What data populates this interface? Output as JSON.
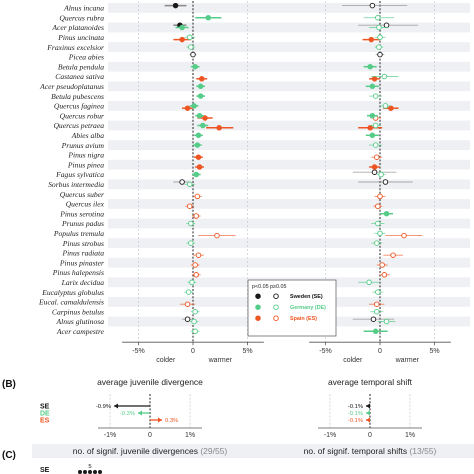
{
  "colors": {
    "SE": "#1a1a1a",
    "DE": "#55cc88",
    "ES": "#ee5522",
    "gray": "#999999",
    "stripe": "#eef0f3"
  },
  "panel_labels": {
    "b": "(B)",
    "c": "(C)"
  },
  "legend": {
    "sig_label": "p<0.05",
    "nonsig_label": "p≥0.05",
    "entries": [
      {
        "key": "SE",
        "label": "Sweden (SE)"
      },
      {
        "key": "DE",
        "label": "Germany (DE)"
      },
      {
        "key": "ES",
        "label": "Spain (ES)"
      }
    ]
  },
  "chart_data": [
    {
      "type": "scatter",
      "panel": "A",
      "subpanels": [
        "juvenile divergence",
        "temporal shift"
      ],
      "categories": [
        "Alnus incana",
        "Quercus rubra",
        "Acer platanoides",
        "Pinus uncinata",
        "Fraxinus excelsior",
        "Picea abies",
        "Betula pendula",
        "Castanea sativa",
        "Acer pseudoplatanus",
        "Betula pubescens",
        "Quercus faginea",
        "Quercus robur",
        "Quercus petraea",
        "Abies alba",
        "Prunus avium",
        "Pinus nigra",
        "Pinus pinea",
        "Fagus sylvatica",
        "Sorbus intermedia",
        "Quercus suber",
        "Quercus ilex",
        "Pinus serotina",
        "Prunus padus",
        "Populus tremula",
        "Pinus strobus",
        "Pinus radiata",
        "Pinus pinaster",
        "Pinus halepensis",
        "Larix decidua",
        "Eucalyptus globulus",
        "Eucal. camaldulensis",
        "Carpinus betulus",
        "Alnus glutinosa",
        "Acer campestre"
      ],
      "xticks": [
        "-5%",
        "0",
        "5%"
      ],
      "xtick_values": [
        -5,
        0,
        5
      ],
      "xlim": [
        -6.5,
        6.5
      ],
      "xlabel_left": "colder",
      "xlabel_right": "warmer",
      "series_left": [
        {
          "sp": "Alnus incana",
          "c": "SE",
          "v": -1.6,
          "lo": -2.6,
          "hi": -0.6,
          "s": true
        },
        {
          "sp": "Quercus rubra",
          "c": "DE",
          "v": 1.4,
          "lo": 0.2,
          "hi": 2.6,
          "s": true
        },
        {
          "sp": "Acer platanoides",
          "c": "SE",
          "v": -1.2,
          "lo": -1.8,
          "hi": -0.6,
          "s": true
        },
        {
          "sp": "Acer platanoides",
          "c": "DE",
          "v": -1.0,
          "lo": -1.6,
          "hi": -0.4,
          "s": true
        },
        {
          "sp": "Pinus uncinata",
          "c": "ES",
          "v": -1.0,
          "lo": -1.8,
          "hi": -0.2,
          "s": true
        },
        {
          "sp": "Pinus uncinata",
          "c": "DE",
          "v": -0.3,
          "lo": -0.8,
          "hi": 0.2,
          "s": false
        },
        {
          "sp": "Fraxinus excelsior",
          "c": "DE",
          "v": -0.2,
          "lo": -0.6,
          "hi": 0.2,
          "s": false
        },
        {
          "sp": "Picea abies",
          "c": "SE",
          "v": 0.0,
          "lo": -0.3,
          "hi": 0.3,
          "s": false
        },
        {
          "sp": "Betula pendula",
          "c": "DE",
          "v": 0.2,
          "lo": -0.2,
          "hi": 0.6,
          "s": true
        },
        {
          "sp": "Castanea sativa",
          "c": "ES",
          "v": 0.8,
          "lo": 0.3,
          "hi": 1.3,
          "s": true
        },
        {
          "sp": "Acer pseudoplatanus",
          "c": "DE",
          "v": 0.7,
          "lo": 0.3,
          "hi": 1.1,
          "s": true
        },
        {
          "sp": "Betula pubescens",
          "c": "DE",
          "v": 0.7,
          "lo": 0.3,
          "hi": 1.1,
          "s": true
        },
        {
          "sp": "Quercus faginea",
          "c": "ES",
          "v": -0.5,
          "lo": -1.0,
          "hi": 0.0,
          "s": true
        },
        {
          "sp": "Quercus faginea",
          "c": "DE",
          "v": 0.1,
          "lo": -0.3,
          "hi": 0.5,
          "s": true
        },
        {
          "sp": "Quercus robur",
          "c": "ES",
          "v": 1.1,
          "lo": 0.4,
          "hi": 1.8,
          "s": true
        },
        {
          "sp": "Quercus robur",
          "c": "DE",
          "v": 0.6,
          "lo": 0.2,
          "hi": 1.0,
          "s": true
        },
        {
          "sp": "Quercus petraea",
          "c": "ES",
          "v": 2.4,
          "lo": 1.2,
          "hi": 3.7,
          "s": true
        },
        {
          "sp": "Quercus petraea",
          "c": "DE",
          "v": 0.9,
          "lo": 0.4,
          "hi": 1.4,
          "s": true
        },
        {
          "sp": "Abies alba",
          "c": "DE",
          "v": 0.5,
          "lo": 0.1,
          "hi": 0.9,
          "s": true
        },
        {
          "sp": "Prunus avium",
          "c": "DE",
          "v": 0.4,
          "lo": 0.0,
          "hi": 0.8,
          "s": true
        },
        {
          "sp": "Pinus nigra",
          "c": "ES",
          "v": 0.5,
          "lo": 0.1,
          "hi": 0.9,
          "s": true
        },
        {
          "sp": "Pinus pinea",
          "c": "ES",
          "v": 0.6,
          "lo": 0.2,
          "hi": 1.0,
          "s": true
        },
        {
          "sp": "Fagus sylvatica",
          "c": "DE",
          "v": 0.3,
          "lo": -0.1,
          "hi": 0.7,
          "s": true
        },
        {
          "sp": "Sorbus intermedia",
          "c": "SE",
          "v": -1.0,
          "lo": -1.8,
          "hi": -0.2,
          "s": false
        },
        {
          "sp": "Sorbus intermedia",
          "c": "DE",
          "v": -0.3,
          "lo": -0.8,
          "hi": 0.2,
          "s": false
        },
        {
          "sp": "Quercus suber",
          "c": "ES",
          "v": 0.4,
          "lo": 0.0,
          "hi": 0.8,
          "s": false
        },
        {
          "sp": "Quercus ilex",
          "c": "ES",
          "v": -0.3,
          "lo": -0.7,
          "hi": 0.1,
          "s": false
        },
        {
          "sp": "Pinus serotina",
          "c": "ES",
          "v": 0.3,
          "lo": -0.1,
          "hi": 0.7,
          "s": false
        },
        {
          "sp": "Prunus padus",
          "c": "DE",
          "v": -0.2,
          "lo": -0.6,
          "hi": 0.2,
          "s": false
        },
        {
          "sp": "Populus tremula",
          "c": "ES",
          "v": 2.2,
          "lo": 0.5,
          "hi": 3.9,
          "s": false
        },
        {
          "sp": "Pinus strobus",
          "c": "DE",
          "v": -0.2,
          "lo": -0.6,
          "hi": 0.2,
          "s": false
        },
        {
          "sp": "Pinus radiata",
          "c": "ES",
          "v": 0.5,
          "lo": 0.0,
          "hi": 1.0,
          "s": false
        },
        {
          "sp": "Pinus pinaster",
          "c": "ES",
          "v": 0.2,
          "lo": -0.2,
          "hi": 0.6,
          "s": false
        },
        {
          "sp": "Pinus halepensis",
          "c": "ES",
          "v": 0.3,
          "lo": -0.1,
          "hi": 0.7,
          "s": false
        },
        {
          "sp": "Larix decidua",
          "c": "DE",
          "v": -0.1,
          "lo": -0.5,
          "hi": 0.3,
          "s": false
        },
        {
          "sp": "Eucalyptus globulus",
          "c": "DE",
          "v": -0.4,
          "lo": -0.8,
          "hi": 0.0,
          "s": false
        },
        {
          "sp": "Eucal. camaldulensis",
          "c": "ES",
          "v": -0.5,
          "lo": -1.2,
          "hi": 0.2,
          "s": false
        },
        {
          "sp": "Carpinus betulus",
          "c": "DE",
          "v": 0.2,
          "lo": -0.2,
          "hi": 0.6,
          "s": false
        },
        {
          "sp": "Alnus glutinosa",
          "c": "SE",
          "v": -0.5,
          "lo": -1.0,
          "hi": 0.0,
          "s": false
        },
        {
          "sp": "Alnus glutinosa",
          "c": "DE",
          "v": 0.1,
          "lo": -0.3,
          "hi": 0.5,
          "s": false
        },
        {
          "sp": "Acer campestre",
          "c": "DE",
          "v": 0.2,
          "lo": -0.2,
          "hi": 0.6,
          "s": false
        }
      ],
      "series_right": [
        {
          "sp": "Alnus incana",
          "c": "SE",
          "v": -0.7,
          "lo": -3.5,
          "hi": 2.5,
          "s": false
        },
        {
          "sp": "Quercus rubra",
          "c": "DE",
          "v": -0.2,
          "lo": -1.5,
          "hi": 1.3,
          "s": false
        },
        {
          "sp": "Acer platanoides",
          "c": "SE",
          "v": 0.6,
          "lo": -2.0,
          "hi": 3.5,
          "s": false
        },
        {
          "sp": "Acer platanoides",
          "c": "DE",
          "v": -0.1,
          "lo": -1.0,
          "hi": 0.8,
          "s": false
        },
        {
          "sp": "Pinus uncinata",
          "c": "ES",
          "v": -0.8,
          "lo": -1.6,
          "hi": 0.0,
          "s": true
        },
        {
          "sp": "Pinus uncinata",
          "c": "DE",
          "v": 0.0,
          "lo": -0.5,
          "hi": 0.5,
          "s": false
        },
        {
          "sp": "Fraxinus excelsior",
          "c": "DE",
          "v": -0.1,
          "lo": -0.5,
          "hi": 0.3,
          "s": false
        },
        {
          "sp": "Picea abies",
          "c": "SE",
          "v": 0.0,
          "lo": -0.4,
          "hi": 0.4,
          "s": false
        },
        {
          "sp": "Betula pendula",
          "c": "DE",
          "v": -0.9,
          "lo": -1.5,
          "hi": -0.3,
          "s": true
        },
        {
          "sp": "Castanea sativa",
          "c": "ES",
          "v": -0.5,
          "lo": -1.0,
          "hi": 0.0,
          "s": true
        },
        {
          "sp": "Castanea sativa",
          "c": "DE",
          "v": 0.4,
          "lo": -0.8,
          "hi": 1.7,
          "s": false
        },
        {
          "sp": "Acer pseudoplatanus",
          "c": "DE",
          "v": -0.7,
          "lo": -1.3,
          "hi": -0.1,
          "s": true
        },
        {
          "sp": "Betula pubescens",
          "c": "DE",
          "v": -0.4,
          "lo": -1.0,
          "hi": 0.2,
          "s": false
        },
        {
          "sp": "Quercus faginea",
          "c": "ES",
          "v": 1.0,
          "lo": 0.3,
          "hi": 1.7,
          "s": true
        },
        {
          "sp": "Quercus faginea",
          "c": "DE",
          "v": 0.5,
          "lo": 0.0,
          "hi": 1.0,
          "s": false
        },
        {
          "sp": "Quercus robur",
          "c": "ES",
          "v": -0.4,
          "lo": -0.9,
          "hi": 0.1,
          "s": false
        },
        {
          "sp": "Quercus robur",
          "c": "DE",
          "v": -0.7,
          "lo": -1.2,
          "hi": -0.2,
          "s": true
        },
        {
          "sp": "Quercus petraea",
          "c": "ES",
          "v": -0.9,
          "lo": -2.0,
          "hi": 0.2,
          "s": true
        },
        {
          "sp": "Quercus petraea",
          "c": "DE",
          "v": -0.4,
          "lo": -0.9,
          "hi": 0.1,
          "s": false
        },
        {
          "sp": "Abies alba",
          "c": "DE",
          "v": -0.7,
          "lo": -1.3,
          "hi": -0.1,
          "s": true
        },
        {
          "sp": "Prunus avium",
          "c": "DE",
          "v": -0.4,
          "lo": -1.0,
          "hi": 0.2,
          "s": false
        },
        {
          "sp": "Pinus nigra",
          "c": "ES",
          "v": -0.3,
          "lo": -0.8,
          "hi": 0.2,
          "s": false
        },
        {
          "sp": "Pinus pinea",
          "c": "ES",
          "v": -0.5,
          "lo": -1.0,
          "hi": 0.0,
          "s": true
        },
        {
          "sp": "Fagus sylvatica",
          "c": "SE",
          "v": -0.5,
          "lo": -2.5,
          "hi": 1.5,
          "s": false
        },
        {
          "sp": "Fagus sylvatica",
          "c": "DE",
          "v": 0.1,
          "lo": -0.3,
          "hi": 0.5,
          "s": false
        },
        {
          "sp": "Sorbus intermedia",
          "c": "SE",
          "v": 0.5,
          "lo": -2.0,
          "hi": 3.0,
          "s": false
        },
        {
          "sp": "Quercus suber",
          "c": "ES",
          "v": 0.0,
          "lo": -0.5,
          "hi": 0.5,
          "s": false
        },
        {
          "sp": "Quercus ilex",
          "c": "ES",
          "v": -0.2,
          "lo": -0.6,
          "hi": 0.2,
          "s": false
        },
        {
          "sp": "Pinus serotina",
          "c": "DE",
          "v": 0.6,
          "lo": 0.0,
          "hi": 1.2,
          "s": true
        },
        {
          "sp": "Prunus padus",
          "c": "DE",
          "v": -0.2,
          "lo": -0.8,
          "hi": 0.4,
          "s": false
        },
        {
          "sp": "Populus tremula",
          "c": "ES",
          "v": 2.2,
          "lo": 0.5,
          "hi": 3.9,
          "s": false
        },
        {
          "sp": "Populus tremula",
          "c": "DE",
          "v": 0.0,
          "lo": -0.5,
          "hi": 0.5,
          "s": false
        },
        {
          "sp": "Pinus strobus",
          "c": "DE",
          "v": -0.3,
          "lo": -0.8,
          "hi": 0.2,
          "s": false
        },
        {
          "sp": "Pinus radiata",
          "c": "ES",
          "v": 1.2,
          "lo": 0.3,
          "hi": 2.1,
          "s": false
        },
        {
          "sp": "Pinus pinaster",
          "c": "ES",
          "v": 0.2,
          "lo": -0.3,
          "hi": 0.7,
          "s": false
        },
        {
          "sp": "Pinus halepensis",
          "c": "ES",
          "v": 0.4,
          "lo": -0.1,
          "hi": 0.9,
          "s": false
        },
        {
          "sp": "Larix decidua",
          "c": "DE",
          "v": -1.0,
          "lo": -2.0,
          "hi": 0.0,
          "s": false
        },
        {
          "sp": "Eucalyptus globulus",
          "c": "DE",
          "v": -0.2,
          "lo": -0.7,
          "hi": 0.3,
          "s": false
        },
        {
          "sp": "Eucal. camaldulensis",
          "c": "ES",
          "v": -0.3,
          "lo": -1.0,
          "hi": 0.4,
          "s": false
        },
        {
          "sp": "Carpinus betulus",
          "c": "DE",
          "v": -0.3,
          "lo": -0.9,
          "hi": 0.3,
          "s": false
        },
        {
          "sp": "Alnus glutinosa",
          "c": "SE",
          "v": -0.6,
          "lo": -2.5,
          "hi": 1.3,
          "s": false
        },
        {
          "sp": "Alnus glutinosa",
          "c": "DE",
          "v": 0.6,
          "lo": -0.2,
          "hi": 1.4,
          "s": false
        },
        {
          "sp": "Acer campestre",
          "c": "DE",
          "v": -0.4,
          "lo": -1.5,
          "hi": 0.7,
          "s": true
        }
      ]
    },
    {
      "type": "bar",
      "panel": "B",
      "titles": [
        "average juvenile divergence",
        "average temporal shift"
      ],
      "categories": [
        "SE",
        "DE",
        "ES"
      ],
      "series": [
        {
          "panel": "left",
          "values": [
            -0.9,
            -0.3,
            0.3
          ],
          "labels": [
            "-0.9%",
            "-0.3%",
            "0.3%"
          ]
        },
        {
          "panel": "right",
          "values": [
            -0.1,
            -0.1,
            -0.1
          ],
          "labels": [
            "-0.1%",
            "-0.1%",
            "-0.1%"
          ]
        }
      ],
      "xticks": [
        "-1%",
        "0",
        "1%"
      ],
      "xtick_values": [
        -1,
        0,
        1
      ],
      "xlim": [
        -1.3,
        1.3
      ]
    },
    {
      "type": "bar",
      "panel": "C",
      "titles": [
        "no. of signif. juvenile divergences",
        "no. of signif. temporal shifts"
      ],
      "title_counts": [
        "(29/55)",
        "(13/55)"
      ],
      "categories": [
        "SE"
      ],
      "visible_value": "5"
    }
  ]
}
